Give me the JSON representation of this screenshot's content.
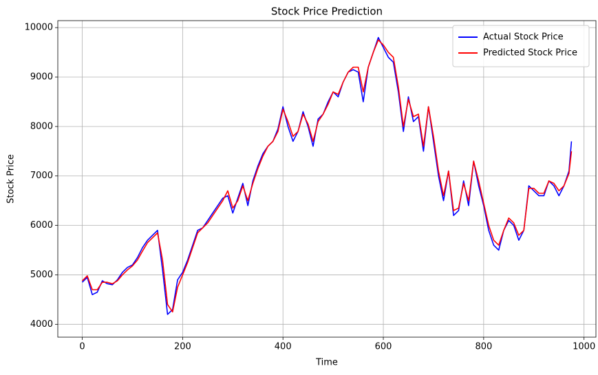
{
  "chart_data": {
    "type": "line",
    "title": "Stock Price Prediction",
    "x_label": "Time",
    "y_label": "Stock Price",
    "x": [
      0,
      10,
      20,
      30,
      40,
      50,
      60,
      70,
      80,
      90,
      100,
      110,
      120,
      130,
      140,
      150,
      160,
      170,
      180,
      190,
      200,
      210,
      220,
      230,
      240,
      250,
      260,
      270,
      280,
      290,
      300,
      310,
      320,
      330,
      340,
      350,
      360,
      370,
      380,
      390,
      400,
      410,
      420,
      430,
      440,
      450,
      460,
      470,
      480,
      490,
      500,
      510,
      520,
      530,
      540,
      550,
      560,
      570,
      580,
      590,
      600,
      610,
      620,
      630,
      640,
      650,
      660,
      670,
      680,
      690,
      700,
      710,
      720,
      730,
      740,
      750,
      760,
      770,
      780,
      790,
      800,
      810,
      820,
      830,
      840,
      850,
      860,
      870,
      880,
      890,
      900,
      910,
      920,
      930,
      940,
      950,
      960,
      970,
      975
    ],
    "series": [
      {
        "name": "Actual Stock Price",
        "color": "#0000ff",
        "values": [
          4850,
          4950,
          4600,
          4650,
          4880,
          4820,
          4800,
          4900,
          5050,
          5150,
          5200,
          5350,
          5550,
          5700,
          5800,
          5900,
          5100,
          4200,
          4300,
          4900,
          5050,
          5300,
          5600,
          5900,
          5950,
          6100,
          6250,
          6400,
          6550,
          6600,
          6250,
          6550,
          6850,
          6400,
          6900,
          7200,
          7450,
          7600,
          7700,
          7950,
          8400,
          8000,
          7700,
          7900,
          8300,
          8000,
          7600,
          8150,
          8250,
          8500,
          8700,
          8600,
          8900,
          9100,
          9150,
          9100,
          8500,
          9200,
          9500,
          9800,
          9600,
          9400,
          9300,
          8700,
          7900,
          8600,
          8100,
          8200,
          7500,
          8400,
          7700,
          7000,
          6500,
          7100,
          6200,
          6300,
          6900,
          6400,
          7300,
          6800,
          6400,
          5900,
          5600,
          5500,
          5900,
          6100,
          6000,
          5700,
          5900,
          6800,
          6700,
          6600,
          6600,
          6900,
          6800,
          6600,
          6800,
          7100,
          7700
        ]
      },
      {
        "name": "Predicted Stock Price",
        "color": "#ff0000",
        "values": [
          4880,
          4980,
          4700,
          4700,
          4850,
          4850,
          4820,
          4880,
          5000,
          5100,
          5180,
          5300,
          5480,
          5650,
          5750,
          5850,
          5300,
          4400,
          4250,
          4750,
          5000,
          5250,
          5550,
          5850,
          5950,
          6050,
          6200,
          6350,
          6500,
          6700,
          6350,
          6500,
          6800,
          6500,
          6850,
          7150,
          7400,
          7600,
          7700,
          7900,
          8350,
          8100,
          7800,
          7900,
          8250,
          8050,
          7700,
          8100,
          8250,
          8450,
          8700,
          8650,
          8900,
          9100,
          9200,
          9200,
          8700,
          9200,
          9500,
          9750,
          9650,
          9500,
          9400,
          8800,
          8000,
          8550,
          8200,
          8250,
          7600,
          8400,
          7800,
          7100,
          6600,
          7100,
          6300,
          6350,
          6850,
          6500,
          7300,
          6900,
          6450,
          6000,
          5700,
          5600,
          5900,
          6150,
          6050,
          5800,
          5900,
          6750,
          6750,
          6650,
          6650,
          6900,
          6850,
          6700,
          6800,
          7050,
          7500
        ]
      }
    ],
    "xlim": [
      -48.75,
      1023.75
    ],
    "ylim": [
      3740,
      10141
    ],
    "xticks": [
      0,
      200,
      400,
      600,
      800,
      1000
    ],
    "yticks": [
      4000,
      5000,
      6000,
      7000,
      8000,
      9000,
      10000
    ],
    "grid": true,
    "legend": "upper right"
  }
}
